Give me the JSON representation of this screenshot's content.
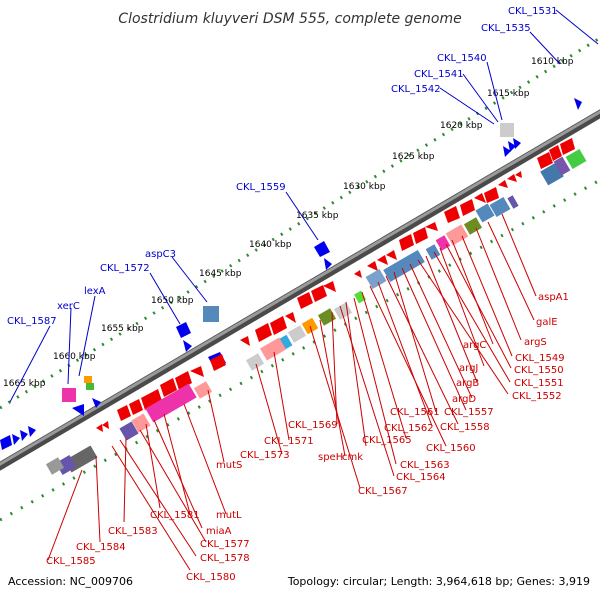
{
  "header": {
    "title": "Clostridium kluyveri DSM 555, complete genome"
  },
  "footer": {
    "accession": "Accession: NC_009706",
    "summary": "Topology: circular; Length: 3,964,618 bp; Genes: 3,919"
  },
  "ticks": [
    "1610 kbp",
    "1615 kbp",
    "1620 kbp",
    "1625 kbp",
    "1630 kbp",
    "1635 kbp",
    "1640 kbp",
    "1645 kbp",
    "1650 kbp",
    "1655 kbp",
    "1660 kbp",
    "1665 kbp"
  ],
  "labels_forward": [
    "CKL_1531",
    "CKL_1535",
    "CKL_1540",
    "CKL_1541",
    "CKL_1542",
    "CKL_1559",
    "aspC3",
    "CKL_1572",
    "lexA",
    "xerC",
    "CKL_1587"
  ],
  "labels_reverse": [
    "aspA1",
    "galE",
    "argS",
    "CKL_1549",
    "argC",
    "CKL_1550",
    "argJ",
    "CKL_1551",
    "argB",
    "CKL_1552",
    "argD",
    "CKL_1557",
    "CKL_1561",
    "CKL_1558",
    "CKL_1562",
    "CKL_1560",
    "CKL_1565",
    "CKL_1569",
    "CKL_1563",
    "cmk",
    "CKL_1564",
    "speH",
    "CKL_1567",
    "CKL_1571",
    "CKL_1573",
    "mutS",
    "mutL",
    "CKL_1581",
    "miaA",
    "CKL_1583",
    "CKL_1577",
    "CKL_1584",
    "CKL_1578",
    "CKL_1585",
    "CKL_1580"
  ],
  "colors": {
    "forward_gene": "#0000ee",
    "reverse_gene": "#ee0000",
    "backbone": "#777777",
    "tick_dot": "#2e8b2e",
    "forward_label": "#0000cc",
    "reverse_label": "#cc0000"
  }
}
